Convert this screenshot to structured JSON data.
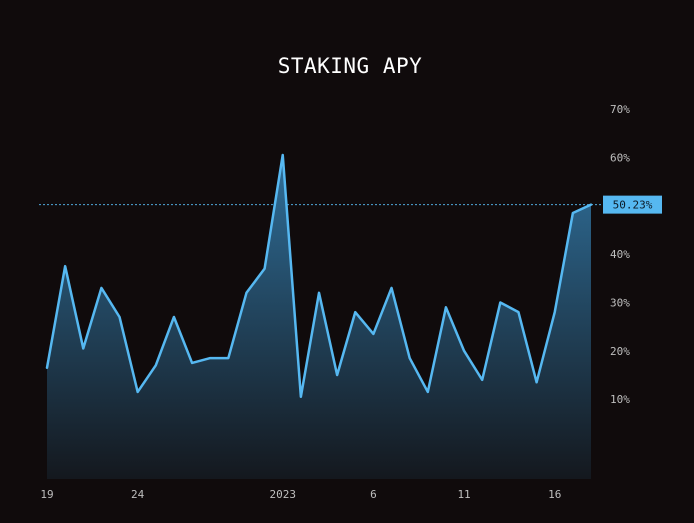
{
  "colors": {
    "background": "#100b0c",
    "line": "#56b8f1",
    "area_top": "#2f6f9a",
    "area_bottom": "#14181e",
    "axis_text": "#bfbfbf",
    "title_text": "#ffffff",
    "badge_bg": "#56b8f1",
    "badge_text": "#0c1a26"
  },
  "chart_data": {
    "type": "area",
    "title": "STAKING APY",
    "xlabel": "",
    "ylabel": "",
    "y_unit": "%",
    "ylim": [
      -6.5,
      76
    ],
    "y_ticks": [
      10,
      20,
      30,
      40,
      50,
      60,
      70
    ],
    "y_tick_labels": [
      "10%",
      "20%",
      "30%",
      "40%",
      "50%",
      "60%",
      "70%"
    ],
    "x_tick_labels": [
      {
        "index": 0,
        "label": "19"
      },
      {
        "index": 5,
        "label": "24"
      },
      {
        "index": 13,
        "label": "2023"
      },
      {
        "index": 18,
        "label": "6"
      },
      {
        "index": 23,
        "label": "11"
      },
      {
        "index": 28,
        "label": "16"
      }
    ],
    "grid": false,
    "legend": "none",
    "current_value": 50.23,
    "current_label": "50.23%",
    "series": [
      {
        "values": [
          16.5,
          37.5,
          20.5,
          33,
          27,
          11.5,
          17,
          27,
          17.5,
          18.5,
          18.5,
          32,
          37,
          60.5,
          10.5,
          32,
          15,
          28,
          23.5,
          33,
          18.5,
          11.5,
          29,
          20,
          14,
          30,
          28,
          13.5,
          28,
          48.5,
          50.23
        ]
      }
    ]
  }
}
